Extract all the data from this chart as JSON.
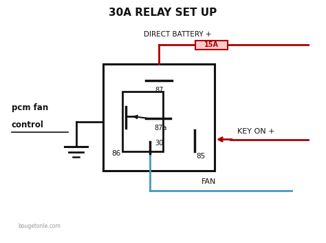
{
  "title": "30A RELAY SET UP",
  "title_fontsize": 11,
  "bg_color": "#ffffff",
  "fig_width": 4.74,
  "fig_height": 3.53,
  "red_color": "#aa0000",
  "blue_color": "#4499bb",
  "black_color": "#111111",
  "watermark": "bougetonle.com",
  "labels": {
    "direct_battery": "DIRECT BATTERY +",
    "key_on": "KEY ON +",
    "fan": "FAN",
    "pcm_fan_line1": "pcm fan",
    "pcm_fan_line2": "control",
    "pin_87": "87",
    "pin_87a": "87a",
    "pin_86": "86",
    "pin_85": "85",
    "pin_30": "30",
    "fuse": "15A"
  },
  "relay": {
    "ox": 0.315,
    "oy": 0.295,
    "ow": 0.345,
    "oh": 0.445,
    "ix": 0.375,
    "iy": 0.375,
    "iw": 0.125,
    "ih": 0.25
  }
}
